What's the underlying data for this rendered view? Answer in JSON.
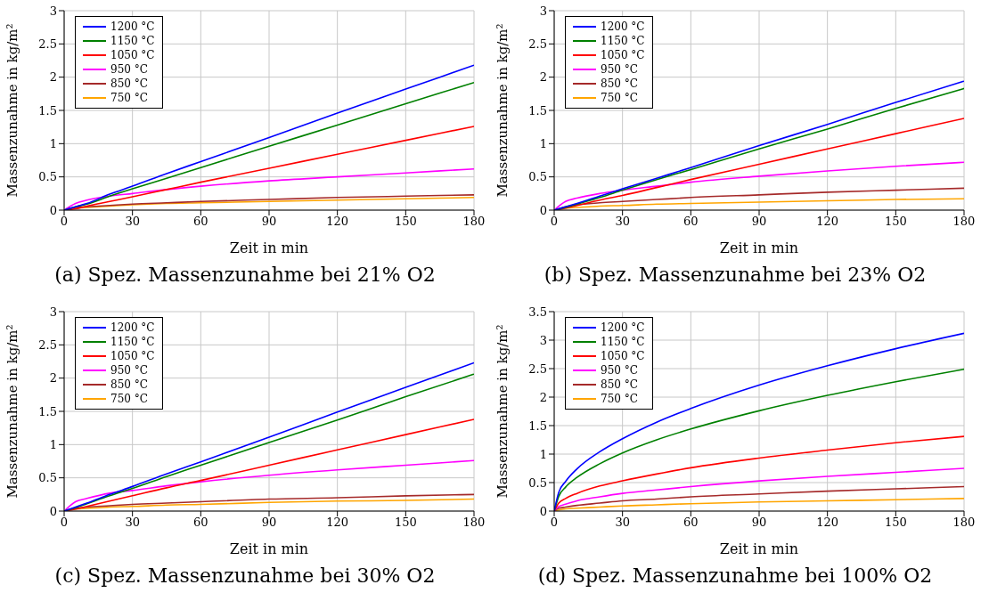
{
  "chart_data": [
    {
      "type": "line",
      "title": "(a) Spez. Massenzunahme bei 21% O2",
      "xlabel": "Zeit in min",
      "ylabel": "Massenzunahme in kg/m²",
      "x": [
        0,
        5,
        10,
        20,
        30,
        45,
        60,
        90,
        120,
        150,
        180
      ],
      "xlim": [
        0,
        180
      ],
      "xticks": [
        0,
        30,
        60,
        90,
        120,
        150,
        180
      ],
      "ylim": [
        0,
        3
      ],
      "yticks": [
        0,
        0.5,
        1,
        1.5,
        2,
        2.5,
        3
      ],
      "grid": true,
      "legend": "top left",
      "marker": "none",
      "line_style": "solid",
      "series": [
        {
          "name": "1200 °C",
          "color": "#0000ff",
          "values": [
            0,
            0.05,
            0.1,
            0.24,
            0.36,
            0.55,
            0.73,
            1.09,
            1.46,
            1.82,
            2.18
          ]
        },
        {
          "name": "1150 °C",
          "color": "#008000",
          "values": [
            0,
            0.05,
            0.09,
            0.21,
            0.32,
            0.48,
            0.64,
            0.96,
            1.28,
            1.6,
            1.92
          ]
        },
        {
          "name": "1050 °C",
          "color": "#ff0000",
          "values": [
            0,
            0.02,
            0.06,
            0.13,
            0.2,
            0.31,
            0.42,
            0.63,
            0.84,
            1.05,
            1.26
          ]
        },
        {
          "name": "950 °C",
          "color": "#ff00ff",
          "values": [
            0,
            0.1,
            0.15,
            0.21,
            0.25,
            0.31,
            0.36,
            0.44,
            0.5,
            0.56,
            0.62
          ]
        },
        {
          "name": "850 °C",
          "color": "#a52a2a",
          "values": [
            0,
            0.04,
            0.05,
            0.07,
            0.09,
            0.11,
            0.13,
            0.16,
            0.19,
            0.21,
            0.23
          ]
        },
        {
          "name": "750 °C",
          "color": "#ffa500",
          "values": [
            0,
            0.03,
            0.04,
            0.06,
            0.08,
            0.1,
            0.11,
            0.13,
            0.15,
            0.17,
            0.19
          ]
        }
      ]
    },
    {
      "type": "line",
      "title": "(b) Spez. Massenzunahme bei 23% O2",
      "xlabel": "Zeit in min",
      "ylabel": "Massenzunahme in kg/m²",
      "x": [
        0,
        5,
        10,
        20,
        30,
        45,
        60,
        90,
        120,
        150,
        180
      ],
      "xlim": [
        0,
        180
      ],
      "xticks": [
        0,
        30,
        60,
        90,
        120,
        150,
        180
      ],
      "ylim": [
        0,
        3
      ],
      "yticks": [
        0,
        0.5,
        1,
        1.5,
        2,
        2.5,
        3
      ],
      "grid": true,
      "legend": "top left",
      "marker": "none",
      "line_style": "solid",
      "series": [
        {
          "name": "1200 °C",
          "color": "#0000ff",
          "values": [
            0,
            0.05,
            0.1,
            0.21,
            0.32,
            0.48,
            0.64,
            0.97,
            1.29,
            1.62,
            1.94
          ]
        },
        {
          "name": "1150 °C",
          "color": "#008000",
          "values": [
            0,
            0.04,
            0.09,
            0.19,
            0.3,
            0.46,
            0.61,
            0.92,
            1.22,
            1.53,
            1.83
          ]
        },
        {
          "name": "1050 °C",
          "color": "#ff0000",
          "values": [
            0,
            0.03,
            0.07,
            0.15,
            0.22,
            0.34,
            0.46,
            0.69,
            0.92,
            1.15,
            1.38
          ]
        },
        {
          "name": "950 °C",
          "color": "#ff00ff",
          "values": [
            0,
            0.13,
            0.18,
            0.25,
            0.3,
            0.36,
            0.42,
            0.51,
            0.59,
            0.66,
            0.72
          ]
        },
        {
          "name": "850 °C",
          "color": "#a52a2a",
          "values": [
            0,
            0.05,
            0.08,
            0.11,
            0.13,
            0.16,
            0.19,
            0.23,
            0.27,
            0.3,
            0.33
          ]
        },
        {
          "name": "750 °C",
          "color": "#ffa500",
          "values": [
            0,
            0.03,
            0.04,
            0.06,
            0.07,
            0.09,
            0.1,
            0.12,
            0.14,
            0.16,
            0.17
          ]
        }
      ]
    },
    {
      "type": "line",
      "title": "(c) Spez. Massenzunahme bei 30% O2",
      "xlabel": "Zeit in min",
      "ylabel": "Massenzunahme in kg/m²",
      "x": [
        0,
        5,
        10,
        20,
        30,
        45,
        60,
        90,
        120,
        150,
        180
      ],
      "xlim": [
        0,
        180
      ],
      "xticks": [
        0,
        30,
        60,
        90,
        120,
        150,
        180
      ],
      "ylim": [
        0,
        3
      ],
      "yticks": [
        0,
        0.5,
        1,
        1.5,
        2,
        2.5,
        3
      ],
      "grid": true,
      "legend": "top left",
      "marker": "none",
      "line_style": "solid",
      "series": [
        {
          "name": "1200 °C",
          "color": "#0000ff",
          "values": [
            0,
            0.06,
            0.12,
            0.25,
            0.37,
            0.56,
            0.74,
            1.11,
            1.49,
            1.86,
            2.23
          ]
        },
        {
          "name": "1150 °C",
          "color": "#008000",
          "values": [
            0,
            0.05,
            0.11,
            0.23,
            0.34,
            0.52,
            0.69,
            1.03,
            1.37,
            1.72,
            2.06
          ]
        },
        {
          "name": "1050 °C",
          "color": "#ff0000",
          "values": [
            0,
            0.03,
            0.07,
            0.15,
            0.23,
            0.35,
            0.46,
            0.69,
            0.92,
            1.15,
            1.38
          ]
        },
        {
          "name": "950 °C",
          "color": "#ff00ff",
          "values": [
            0,
            0.14,
            0.19,
            0.27,
            0.31,
            0.38,
            0.44,
            0.54,
            0.62,
            0.69,
            0.76
          ]
        },
        {
          "name": "850 °C",
          "color": "#a52a2a",
          "values": [
            0,
            0.04,
            0.06,
            0.08,
            0.1,
            0.12,
            0.14,
            0.18,
            0.2,
            0.23,
            0.25
          ]
        },
        {
          "name": "750 °C",
          "color": "#ffa500",
          "values": [
            0,
            0.03,
            0.04,
            0.06,
            0.07,
            0.09,
            0.1,
            0.13,
            0.15,
            0.16,
            0.18
          ]
        }
      ]
    },
    {
      "type": "line",
      "title": "(d) Spez. Massenzunahme bei 100% O2",
      "xlabel": "Zeit in min",
      "ylabel": "Massenzunahme in kg/m²",
      "x": [
        0,
        2,
        5,
        10,
        20,
        30,
        45,
        60,
        90,
        120,
        150,
        180
      ],
      "xlim": [
        0,
        180
      ],
      "xticks": [
        0,
        30,
        60,
        90,
        120,
        150,
        180
      ],
      "ylim": [
        0,
        3.5
      ],
      "yticks": [
        0,
        0.5,
        1,
        1.5,
        2,
        2.5,
        3,
        3.5
      ],
      "grid": true,
      "legend": "top left",
      "marker": "none",
      "line_style": "solid",
      "series": [
        {
          "name": "1200 °C",
          "color": "#0000ff",
          "values": [
            0,
            0.33,
            0.52,
            0.74,
            1.04,
            1.27,
            1.56,
            1.8,
            2.21,
            2.55,
            2.85,
            3.12
          ]
        },
        {
          "name": "1150 °C",
          "color": "#008000",
          "values": [
            0,
            0.26,
            0.42,
            0.59,
            0.83,
            1.02,
            1.25,
            1.44,
            1.76,
            2.03,
            2.27,
            2.49
          ]
        },
        {
          "name": "1050 °C",
          "color": "#ff0000",
          "values": [
            0,
            0.14,
            0.22,
            0.31,
            0.44,
            0.53,
            0.65,
            0.76,
            0.93,
            1.07,
            1.2,
            1.31
          ]
        },
        {
          "name": "950 °C",
          "color": "#ff00ff",
          "values": [
            0,
            0.08,
            0.12,
            0.18,
            0.25,
            0.31,
            0.37,
            0.43,
            0.53,
            0.61,
            0.68,
            0.75
          ]
        },
        {
          "name": "850 °C",
          "color": "#a52a2a",
          "values": [
            0,
            0.05,
            0.07,
            0.1,
            0.14,
            0.18,
            0.21,
            0.25,
            0.3,
            0.35,
            0.39,
            0.43
          ]
        },
        {
          "name": "750 °C",
          "color": "#ffa500",
          "values": [
            0,
            0.02,
            0.04,
            0.05,
            0.07,
            0.09,
            0.11,
            0.13,
            0.16,
            0.18,
            0.2,
            0.22
          ]
        }
      ]
    }
  ]
}
